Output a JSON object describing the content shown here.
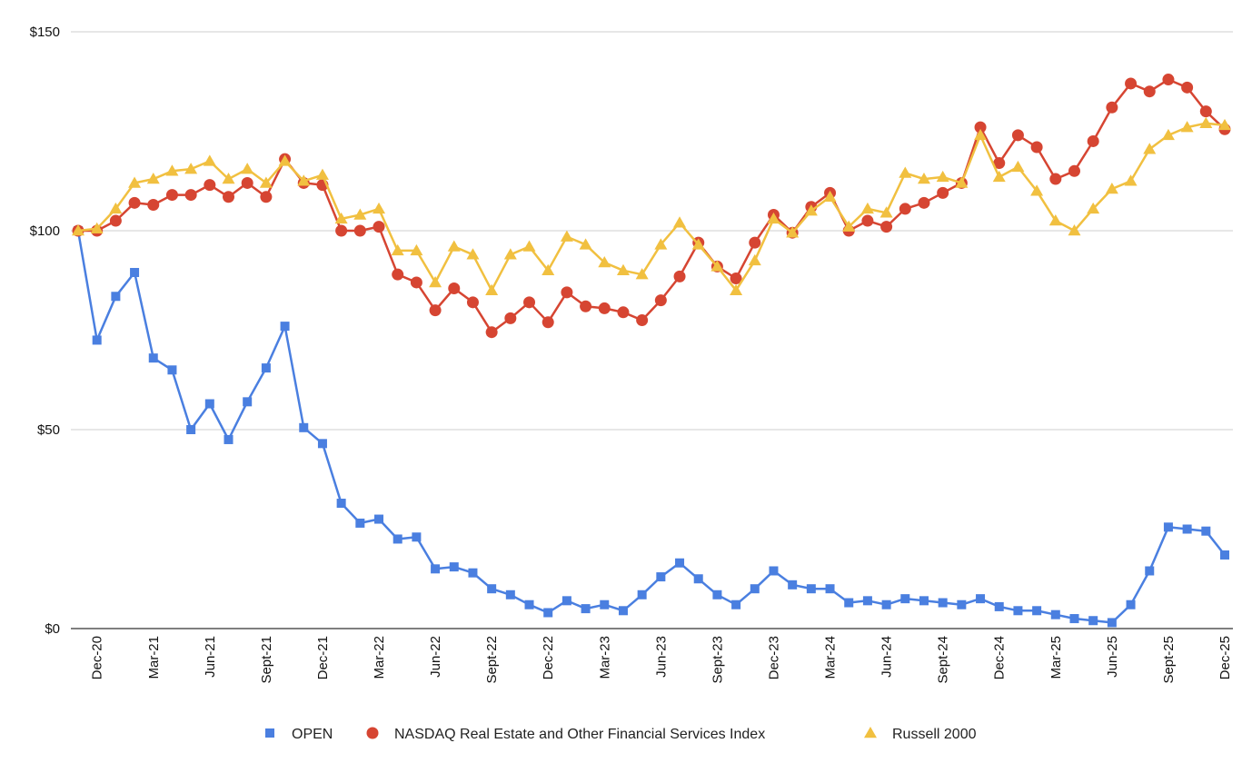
{
  "chart_data": {
    "type": "line",
    "title": "",
    "xlabel": "",
    "ylabel": "",
    "ylim": [
      0,
      150
    ],
    "y_ticks": [
      0,
      50,
      100,
      150
    ],
    "y_tick_labels": [
      "$0",
      "$50",
      "$100",
      "$150"
    ],
    "x_tick_labels": [
      "Dec-20",
      "Mar-21",
      "Jun-21",
      "Sept-21",
      "Dec-21",
      "Mar-22",
      "Jun-22",
      "Sept-22",
      "Dec-22",
      "Mar-23",
      "Jun-23",
      "Sept-23",
      "Dec-23",
      "Mar-24",
      "Jun-24",
      "Sept-24",
      "Dec-24",
      "Mar-25",
      "Jun-25",
      "Sept-25",
      "Dec-25"
    ],
    "grid": true,
    "legend_position": "bottom",
    "series": [
      {
        "name": "OPEN",
        "color": "#4a7fe0",
        "marker": "square",
        "values": [
          100,
          72.5,
          83.5,
          89.5,
          68,
          65,
          50,
          56.5,
          47.5,
          57,
          65.5,
          76,
          50.5,
          46.5,
          31.5,
          26.5,
          27.5,
          22.5,
          23,
          15,
          15.5,
          14,
          10,
          8.5,
          6,
          4,
          7,
          5,
          6,
          4.5,
          8.5,
          13,
          16.5,
          12.5,
          8.5,
          6,
          10,
          14.5,
          11,
          10,
          10,
          6.5,
          7,
          6,
          7.5,
          7,
          6.5,
          6,
          7.5,
          5.5,
          4.5,
          4.5,
          3.5,
          2.5,
          2,
          1.5,
          6,
          14.5,
          25.5,
          25,
          24.5,
          18.5
        ]
      },
      {
        "name": "NASDAQ Real Estate and Other Financial Services Index",
        "color": "#d64532",
        "marker": "circle",
        "values": [
          100,
          100,
          102.5,
          107,
          106.5,
          109,
          109,
          111.5,
          108.5,
          112,
          108.5,
          118,
          112,
          111.5,
          100,
          100,
          101,
          89,
          87,
          80,
          85.5,
          82,
          74.5,
          78,
          82,
          77,
          84.5,
          81,
          80.5,
          79.5,
          77.5,
          82.5,
          88.5,
          97,
          91,
          88,
          97,
          104,
          99.5,
          106,
          109.5,
          100,
          102.5,
          101,
          105.5,
          107,
          109.5,
          112,
          126,
          117,
          124,
          121,
          113,
          115,
          122.5,
          131,
          137,
          135,
          138,
          136,
          130,
          125.5
        ]
      },
      {
        "name": "Russell 2000",
        "color": "#f1c040",
        "marker": "triangle",
        "values": [
          100,
          100.5,
          105.5,
          112,
          113,
          115,
          115.5,
          117.5,
          113,
          115.5,
          112,
          117.5,
          112.5,
          114,
          103,
          104,
          105.5,
          95,
          95,
          87,
          96,
          94,
          85,
          94,
          96,
          90,
          98.5,
          96.5,
          92,
          90,
          89,
          96.5,
          102,
          96.5,
          91,
          85,
          92.5,
          103,
          99.5,
          105,
          108.5,
          101,
          105.5,
          104.5,
          114.5,
          113,
          113.5,
          112,
          124,
          113.5,
          116,
          110,
          102.5,
          100,
          105.5,
          110.5,
          112.5,
          120.5,
          124,
          126,
          127,
          126.5
        ]
      }
    ]
  }
}
